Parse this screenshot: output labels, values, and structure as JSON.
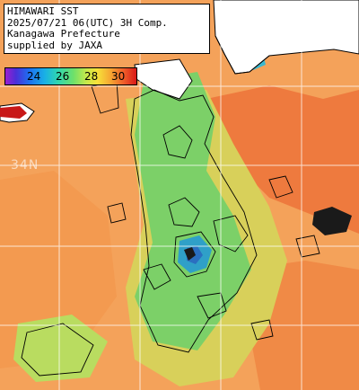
{
  "caption": {
    "line1": "HIMAWARI SST",
    "line2": "2025/07/21 06(UTC) 3H Comp.",
    "line3": "Kanagawa Prefecture",
    "line4": "supplied by JAXA"
  },
  "colorbar": {
    "ticks": [
      "24",
      "26",
      "28",
      "30"
    ],
    "colors": [
      "#9b1fd0",
      "#1e6ef0",
      "#2fd6b0",
      "#c8e84a",
      "#f6a832",
      "#d81818"
    ]
  },
  "grid": {
    "lat_label": "34N"
  },
  "palette": {
    "sea_warm": "#f4a25a",
    "sea_hot": "#ee7a3e",
    "sea_mid": "#d8d05a",
    "sea_cool": "#7cd068",
    "sea_cold": "#2fa0c8",
    "land": "#ffffff",
    "cloud": "#000000"
  }
}
